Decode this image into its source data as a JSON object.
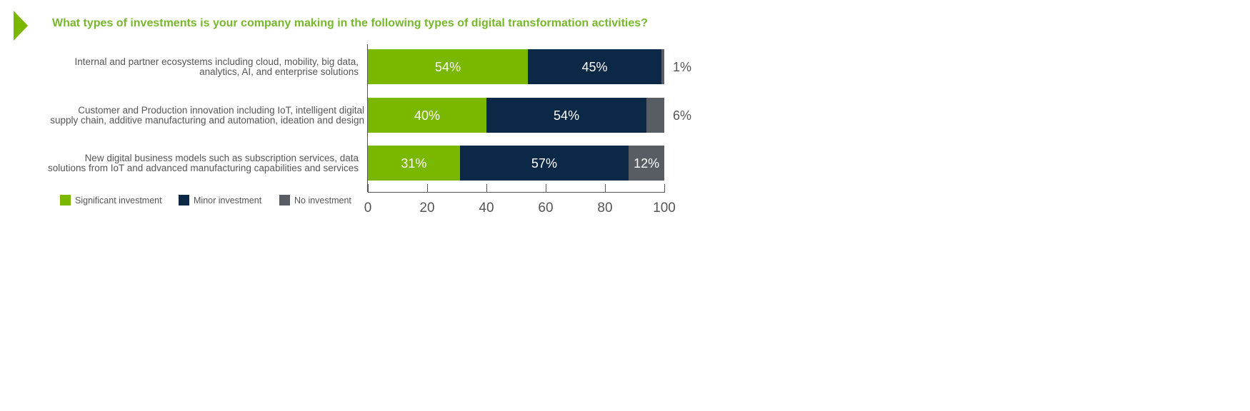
{
  "chart_data": {
    "type": "stacked-bar-horizontal",
    "title": "What types of investments is your company making in the following types of digital transformation activities?",
    "categories": [
      "Internal and partner ecosystems including cloud, mobility, big data, analytics, AI, and enterprise solutions",
      "Customer and Production innovation including IoT, intelligent digital supply chain, additive manufacturing and automation, ideation and design",
      "New digital business models such as subscription services, data solutions from IoT and advanced manufacturing capabilities and services"
    ],
    "series": [
      {
        "name": "Significant investment",
        "color": "#7ab800",
        "values": [
          54,
          40,
          31
        ],
        "value_labels": [
          "54%",
          "40%",
          "31%"
        ]
      },
      {
        "name": "Minor investment",
        "color": "#0c2847",
        "values": [
          45,
          54,
          57
        ],
        "value_labels": [
          "45%",
          "54%",
          "57%"
        ]
      },
      {
        "name": "No investment",
        "color": "#585c63",
        "values": [
          1,
          6,
          12
        ],
        "value_labels": [
          "1%",
          "6%",
          "12%"
        ]
      }
    ],
    "xlim": [
      0,
      100
    ],
    "xticks": [
      0,
      20,
      40,
      60,
      80,
      100
    ]
  }
}
